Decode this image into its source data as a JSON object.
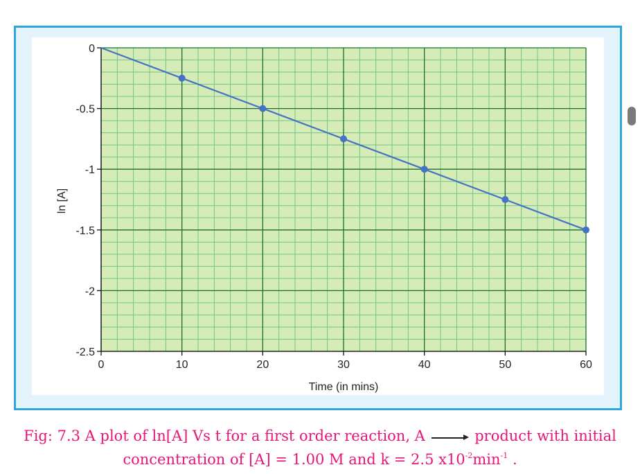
{
  "chart_data": {
    "type": "line",
    "xlabel": "Time (in mins)",
    "ylabel": "ln [A]",
    "xlim": [
      0,
      60
    ],
    "ylim": [
      -2.5,
      0
    ],
    "xticks": [
      0,
      10,
      20,
      30,
      40,
      50,
      60
    ],
    "yticks": [
      0,
      -0.5,
      -1,
      -1.5,
      -2,
      -2.5
    ],
    "xtick_labels": [
      "0",
      "10",
      "20",
      "30",
      "40",
      "50",
      "60"
    ],
    "ytick_labels": [
      "0",
      "-0.5",
      "-1",
      "-1.5",
      "-2",
      "-2.5"
    ],
    "grid": "graph paper (major every 10 min / 0.5, minor every 2 min / 0.1)",
    "series": [
      {
        "x": [
          0,
          10,
          20,
          30,
          40,
          50,
          60
        ],
        "y": [
          0,
          -0.25,
          -0.5,
          -0.75,
          -1.0,
          -1.25,
          -1.5
        ],
        "markers": [
          false,
          true,
          true,
          true,
          true,
          true,
          true
        ],
        "color": "#4472c4"
      }
    ]
  },
  "colors": {
    "plot_background": "#d6ecb6",
    "minor_grid": "#72c48a",
    "major_grid": "#1a6e32",
    "frame_border": "#2fa6dd",
    "frame_background": "#e2f3fb",
    "caption": "#e6157a"
  },
  "caption": {
    "line1_a": "Fig: 7.3 A plot of  ln[A] Vs t  for a first order reaction,  A",
    "line1_b": "product   with initial",
    "line2_a": "concentration of [A] = 1.00 M  and k = 2.5 x10",
    "line2_exp1": "-2",
    "line2_b": "min",
    "line2_exp2": "-1",
    "line2_c": "  ."
  }
}
